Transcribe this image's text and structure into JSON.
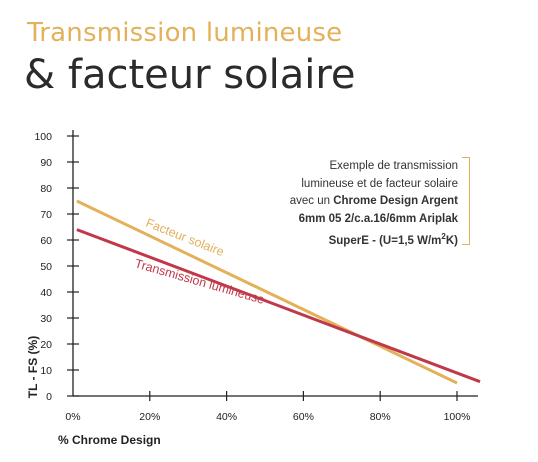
{
  "heading": {
    "line1": "Transmission lumineuse",
    "line2": "& facteur solaire"
  },
  "note": {
    "l1": "Exemple de transmission",
    "l2": "lumineuse et de facteur solaire",
    "l3_prefix": "avec un ",
    "l3_bold": "Chrome Design Argent",
    "l4": "6mm 05 2/c.a.16/6mm Ariplak",
    "l5_main": "SuperE - (U=1,5 W/m",
    "l5_sup": "2",
    "l5_end": "K)"
  },
  "colors": {
    "facteur": "#e3b15a",
    "transmission": "#c0394b",
    "axis": "#222222",
    "text": "#333333"
  },
  "chart_data": {
    "type": "line",
    "xlabel": "% Chrome Design",
    "ylabel": "TL - FS (%)",
    "xlim": [
      0,
      100
    ],
    "ylim": [
      0,
      100
    ],
    "x_ticks": [
      "0%",
      "20%",
      "40%",
      "60%",
      "80%",
      "100%"
    ],
    "y_ticks": [
      "0",
      "10",
      "20",
      "30",
      "40",
      "50",
      "60",
      "70",
      "80",
      "90",
      "100"
    ],
    "series": [
      {
        "name": "Facteur solaire",
        "x": [
          1,
          100
        ],
        "y": [
          75,
          5
        ]
      },
      {
        "name": "Transmission lumineuse",
        "x": [
          1,
          106
        ],
        "y": [
          64,
          5.5
        ]
      }
    ],
    "grid": false
  }
}
